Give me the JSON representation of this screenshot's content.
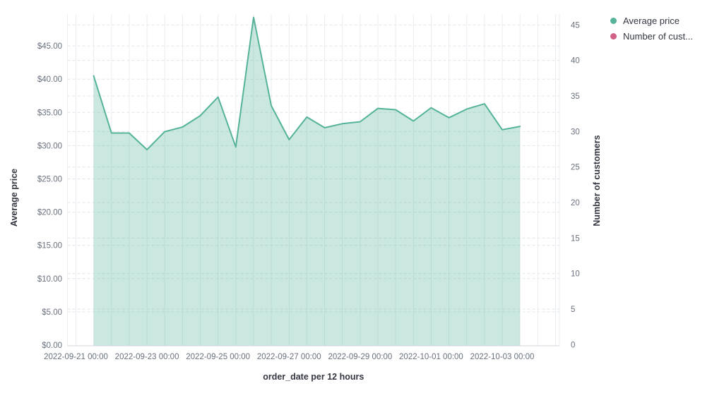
{
  "legend": {
    "items": [
      {
        "label": "Average price",
        "color": "#54B399"
      },
      {
        "label": "Number of cust...",
        "color": "#D36086"
      }
    ]
  },
  "chart_data": {
    "type": "area",
    "title": "",
    "xlabel": "order_date per 12 hours",
    "ylabel_left": "Average price",
    "ylabel_right": "Number of customers",
    "ylim_left": [
      0,
      45
    ],
    "ylim_right": [
      0,
      45
    ],
    "grid": true,
    "legend_position": "top-right",
    "x_interval": "12 hours",
    "x": [
      "2022-09-21 12:00",
      "2022-09-22 00:00",
      "2022-09-22 12:00",
      "2022-09-23 00:00",
      "2022-09-23 12:00",
      "2022-09-24 00:00",
      "2022-09-24 12:00",
      "2022-09-25 00:00",
      "2022-09-25 12:00",
      "2022-09-26 00:00",
      "2022-09-26 12:00",
      "2022-09-27 00:00",
      "2022-09-27 12:00",
      "2022-09-28 00:00",
      "2022-09-28 12:00",
      "2022-09-29 00:00",
      "2022-09-29 12:00",
      "2022-09-30 00:00",
      "2022-09-30 12:00",
      "2022-10-01 00:00",
      "2022-10-01 12:00",
      "2022-10-02 00:00",
      "2022-10-02 12:00",
      "2022-10-03 00:00",
      "2022-10-03 12:00"
    ],
    "series": [
      {
        "name": "Average price",
        "axis": "left",
        "color": "#54B399",
        "fill_opacity": 0.3,
        "values": [
          40.5,
          31.9,
          31.9,
          29.4,
          32.1,
          32.8,
          34.5,
          37.3,
          29.8,
          49.3,
          36.0,
          30.9,
          34.3,
          32.7,
          33.3,
          33.6,
          35.6,
          35.4,
          33.7,
          35.7,
          34.2,
          35.5,
          36.3,
          32.4,
          32.9
        ]
      },
      {
        "name": "Number of customers",
        "axis": "right",
        "color": "#D36086",
        "values": []
      }
    ],
    "left_axis": {
      "title": "Average price",
      "tick_labels": [
        "$0.00",
        "$5.00",
        "$10.00",
        "$15.00",
        "$20.00",
        "$25.00",
        "$30.00",
        "$35.00",
        "$40.00",
        "$45.00"
      ],
      "tick_values": [
        0,
        5,
        10,
        15,
        20,
        25,
        30,
        35,
        40,
        45
      ]
    },
    "right_axis": {
      "title": "Number of customers",
      "tick_labels": [
        "0",
        "5",
        "10",
        "15",
        "20",
        "25",
        "30",
        "35",
        "40",
        "45"
      ],
      "tick_values": [
        0,
        5,
        10,
        15,
        20,
        25,
        30,
        35,
        40,
        45
      ]
    },
    "x_axis": {
      "title": "order_date per 12 hours",
      "tick_labels": [
        "2022-09-21 00:00",
        "2022-09-23 00:00",
        "2022-09-25 00:00",
        "2022-09-27 00:00",
        "2022-09-29 00:00",
        "2022-10-01 00:00",
        "2022-10-03 00:00"
      ]
    }
  },
  "colors": {
    "tick_text": "#69707d",
    "axis_title_text": "#343741",
    "grid_dashed": "#e2e6ea",
    "grid_vertical": "#eaedf1",
    "axis_line": "#d0d6dd",
    "background": "#ffffff"
  }
}
